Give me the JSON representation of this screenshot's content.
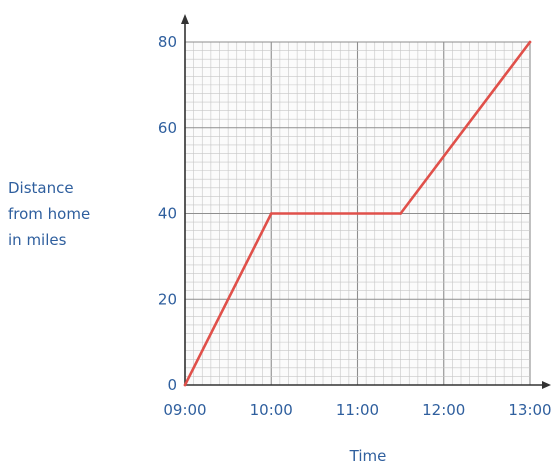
{
  "chart_data": {
    "type": "line",
    "title": "",
    "xlabel": "Time",
    "ylabel_lines": [
      "Distance",
      "from home",
      "in miles"
    ],
    "x_ticks": [
      "09:00",
      "10:00",
      "11:00",
      "12:00",
      "13:00"
    ],
    "y_ticks": [
      0,
      20,
      40,
      60,
      80
    ],
    "xlim": [
      "09:00",
      "13:00"
    ],
    "ylim": [
      0,
      80
    ],
    "grid": true,
    "series": [
      {
        "color": "#e0504a",
        "points": [
          {
            "x": "09:00",
            "y": 0
          },
          {
            "x": "10:00",
            "y": 40
          },
          {
            "x": "11:30",
            "y": 40
          },
          {
            "x": "13:00",
            "y": 80
          }
        ]
      }
    ],
    "colors": {
      "label": "#2f5f9e",
      "grid_minor": "#c6c6c6",
      "grid_major": "#8e8e8e",
      "axis": "#333333"
    }
  }
}
